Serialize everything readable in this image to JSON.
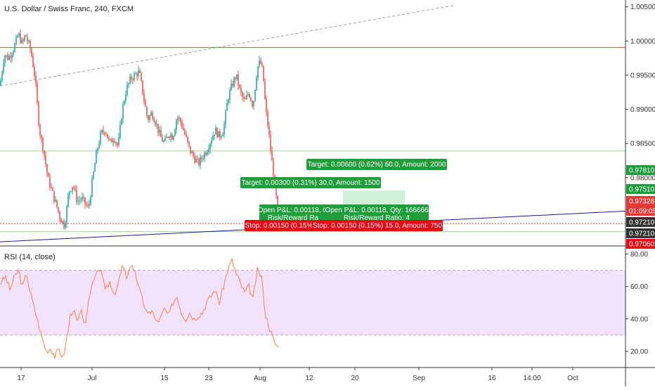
{
  "title": "U.S. Dollar / Swiss Franc, 240, FXCM",
  "colors": {
    "up": "#26a69a",
    "down": "#ef5350",
    "hline_red": "#e53935",
    "hline_green": "#a5d38a",
    "trend_blue": "#1a1a8c",
    "dashed_trend": "#9e9e9e",
    "target_box": "#c8ecd0",
    "label_green": "#1e9e3a",
    "label_red": "#e50914",
    "rsi_line": "#ff7f3f",
    "rsi_band": "#f1e3fd",
    "rsi_bounds": "#c8a0c8",
    "axis_dark": "#333333"
  },
  "price_axis": {
    "ticks": [
      "1.00500",
      "1.00000",
      "0.99500",
      "0.99000",
      "0.98500",
      "0.98000"
    ],
    "badges": [
      {
        "label": "0.97810",
        "color": "#1e9e3a"
      },
      {
        "label": "0.97510",
        "color": "#1e9e3a"
      },
      {
        "label": "0.97328",
        "color": "#e53935"
      },
      {
        "label": "01:09:05",
        "color": "#e53935"
      },
      {
        "label": "0.97210",
        "color": "#333333"
      },
      {
        "label": "0.97210",
        "color": "#333333"
      },
      {
        "label": "0.97060",
        "color": "#e50914"
      }
    ]
  },
  "time_axis": {
    "labels": [
      "17",
      "Jul",
      "15",
      "23",
      "Aug",
      "12",
      "20",
      "Sep",
      "16",
      "14:00",
      "Oct"
    ]
  },
  "orders": {
    "target1": "Target: 0.00300 (0.31%) 30.0, Amount: 1500",
    "target2": "Target: 0.00600 (0.62%) 60.0, Amount: 2000",
    "pl1": "Open P&L: 0.00118, Q",
    "rr1": "Risk/Reward Ra",
    "pl2": "Open P&L: 0.00118, Qty: 166666",
    "rr2": "Risk/Reward Ratio: 4",
    "stop1": "Stop: 0.00150 (0.15%",
    "stop2": "Stop: 0.00150 (0.15%) 15.0, Amount: 750"
  },
  "rsi": {
    "label": "RSI (14, close)",
    "ticks": [
      "80.00",
      "60.00",
      "40.00",
      "20.00"
    ],
    "upper_bound": 70,
    "lower_bound": 30
  },
  "chart_data": [
    {
      "type": "candlestick",
      "title": "U.S. Dollar / Swiss Franc, 240, FXCM",
      "ylim": [
        0.97,
        1.006
      ],
      "x_labels": [
        "17",
        "Jul",
        "15",
        "23",
        "Aug",
        "12",
        "20",
        "Sep",
        "16",
        "14:00",
        "Oct"
      ],
      "anchors": [
        [
          0,
          0.9935
        ],
        [
          6,
          0.998
        ],
        [
          12,
          0.9975
        ],
        [
          20,
          0.999
        ],
        [
          26,
          1.001
        ],
        [
          32,
          0.9995
        ],
        [
          36,
          1.001
        ],
        [
          44,
          0.9985
        ],
        [
          50,
          0.9945
        ],
        [
          56,
          0.987
        ],
        [
          62,
          0.984
        ],
        [
          68,
          0.98
        ],
        [
          74,
          0.978
        ],
        [
          80,
          0.976
        ],
        [
          86,
          0.974
        ],
        [
          92,
          0.973
        ],
        [
          98,
          0.978
        ],
        [
          104,
          0.979
        ],
        [
          110,
          0.9765
        ],
        [
          116,
          0.977
        ],
        [
          122,
          0.976
        ],
        [
          126,
          0.9755
        ],
        [
          132,
          0.98
        ],
        [
          138,
          0.984
        ],
        [
          144,
          0.9865
        ],
        [
          150,
          0.987
        ],
        [
          156,
          0.985
        ],
        [
          162,
          0.986
        ],
        [
          168,
          0.9845
        ],
        [
          174,
          0.99
        ],
        [
          180,
          0.993
        ],
        [
          186,
          0.9945
        ],
        [
          192,
          0.995
        ],
        [
          198,
          0.9955
        ],
        [
          204,
          0.992
        ],
        [
          210,
          0.9885
        ],
        [
          216,
          0.9895
        ],
        [
          222,
          0.988
        ],
        [
          228,
          0.986
        ],
        [
          234,
          0.985
        ],
        [
          240,
          0.9865
        ],
        [
          246,
          0.986
        ],
        [
          252,
          0.989
        ],
        [
          258,
          0.988
        ],
        [
          264,
          0.986
        ],
        [
          270,
          0.984
        ],
        [
          276,
          0.983
        ],
        [
          282,
          0.982
        ],
        [
          288,
          0.983
        ],
        [
          294,
          0.984
        ],
        [
          300,
          0.9855
        ],
        [
          306,
          0.987
        ],
        [
          312,
          0.986
        ],
        [
          318,
          0.987
        ],
        [
          324,
          0.9915
        ],
        [
          330,
          0.9935
        ],
        [
          336,
          0.995
        ],
        [
          342,
          0.9925
        ],
        [
          348,
          0.991
        ],
        [
          354,
          0.9925
        ],
        [
          360,
          0.9905
        ],
        [
          366,
          0.996
        ],
        [
          370,
          0.997
        ],
        [
          374,
          0.9955
        ],
        [
          378,
          0.99
        ],
        [
          382,
          0.987
        ],
        [
          386,
          0.983
        ],
        [
          390,
          0.98
        ],
        [
          394,
          0.976
        ],
        [
          398,
          0.9733
        ]
      ],
      "horizontal_levels": [
        {
          "value": 0.99905,
          "color": "#e53935"
        },
        {
          "value": 0.9839,
          "color": "#a5d38a"
        },
        {
          "value": 0.97328,
          "color": "#e53935",
          "style": "dotted"
        },
        {
          "value": 0.9721,
          "color": "#a5d38a"
        }
      ],
      "trendlines": [
        {
          "color": "#1a1a8c",
          "from": [
            0,
            0.9706
          ],
          "to": [
            890,
            0.9751
          ]
        },
        {
          "color": "#9e9e9e",
          "style": "dashed",
          "from": [
            0,
            0.9934
          ],
          "to": [
            645,
            1.0052
          ]
        }
      ],
      "positions": [
        {
          "entry": 0.9721,
          "target": 0.9751,
          "stop": 0.9706
        },
        {
          "entry": 0.9721,
          "target": 0.9781,
          "stop": 0.9706
        }
      ]
    },
    {
      "type": "line",
      "title": "RSI (14, close)",
      "ylim": [
        10,
        85
      ],
      "bands": [
        70,
        30
      ],
      "series": [
        {
          "anchors": [
            [
              0,
              62
            ],
            [
              8,
              66
            ],
            [
              14,
              58
            ],
            [
              20,
              65
            ],
            [
              26,
              70
            ],
            [
              32,
              60
            ],
            [
              38,
              68
            ],
            [
              42,
              58
            ],
            [
              48,
              48
            ],
            [
              54,
              38
            ],
            [
              60,
              28
            ],
            [
              66,
              20
            ],
            [
              72,
              22
            ],
            [
              78,
              17
            ],
            [
              84,
              21
            ],
            [
              90,
              16
            ],
            [
              96,
              30
            ],
            [
              100,
              42
            ],
            [
              104,
              46
            ],
            [
              110,
              38
            ],
            [
              116,
              44
            ],
            [
              122,
              36
            ],
            [
              128,
              56
            ],
            [
              134,
              66
            ],
            [
              140,
              72
            ],
            [
              146,
              66
            ],
            [
              150,
              58
            ],
            [
              156,
              62
            ],
            [
              162,
              54
            ],
            [
              168,
              62
            ],
            [
              174,
              72
            ],
            [
              180,
              66
            ],
            [
              186,
              73
            ],
            [
              192,
              70
            ],
            [
              198,
              58
            ],
            [
              204,
              50
            ],
            [
              210,
              42
            ],
            [
              216,
              46
            ],
            [
              222,
              38
            ],
            [
              228,
              40
            ],
            [
              234,
              46
            ],
            [
              240,
              42
            ],
            [
              246,
              50
            ],
            [
              252,
              54
            ],
            [
              258,
              44
            ],
            [
              264,
              40
            ],
            [
              270,
              44
            ],
            [
              276,
              40
            ],
            [
              282,
              42
            ],
            [
              288,
              44
            ],
            [
              294,
              50
            ],
            [
              300,
              54
            ],
            [
              306,
              58
            ],
            [
              312,
              50
            ],
            [
              318,
              60
            ],
            [
              324,
              70
            ],
            [
              330,
              76
            ],
            [
              336,
              68
            ],
            [
              342,
              62
            ],
            [
              348,
              56
            ],
            [
              354,
              60
            ],
            [
              360,
              52
            ],
            [
              366,
              70
            ],
            [
              372,
              66
            ],
            [
              378,
              42
            ],
            [
              384,
              34
            ],
            [
              390,
              26
            ],
            [
              396,
              22
            ]
          ]
        }
      ]
    }
  ]
}
